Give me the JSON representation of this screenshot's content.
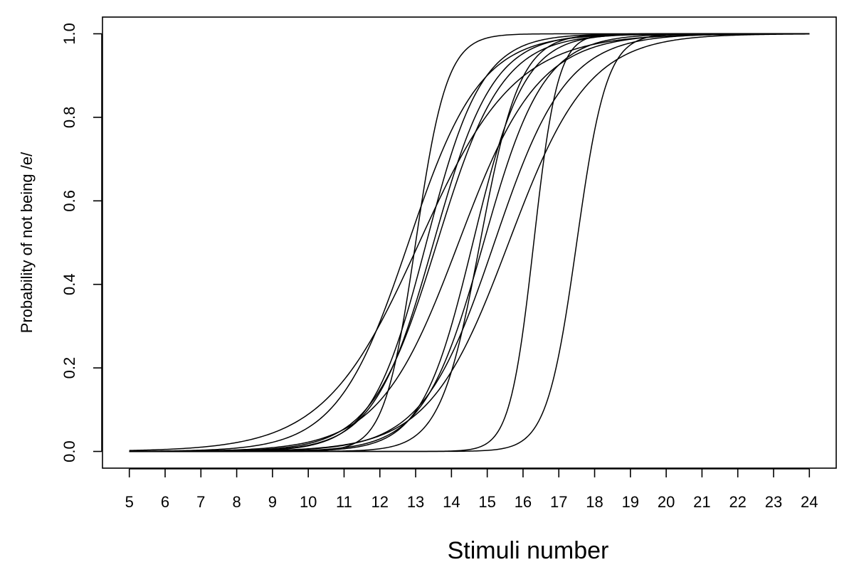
{
  "chart_data": {
    "type": "line",
    "title": "",
    "xlabel": "Stimuli number",
    "ylabel": "Probability of not being /e/",
    "xlim": [
      4.25,
      24.75
    ],
    "ylim": [
      -0.04,
      1.04
    ],
    "x_ticks": [
      5,
      6,
      7,
      8,
      9,
      10,
      11,
      12,
      13,
      14,
      15,
      16,
      17,
      18,
      19,
      20,
      21,
      22,
      23,
      24
    ],
    "x_tick_labels": [
      "5",
      "6",
      "7",
      "8",
      "9",
      "10",
      "11",
      "12",
      "13",
      "14",
      "15",
      "16",
      "17",
      "18",
      "19",
      "20",
      "21",
      "22",
      "23",
      "24"
    ],
    "y_ticks": [
      0.0,
      0.2,
      0.4,
      0.6,
      0.8,
      1.0
    ],
    "y_tick_labels": [
      "0.0",
      "0.2",
      "0.4",
      "0.6",
      "0.8",
      "1.0"
    ],
    "grid": false,
    "legend": "none",
    "line_color": "#000000",
    "curve_model": "logistic",
    "series": [
      {
        "midpoint": 13.0,
        "slope": 2.3
      },
      {
        "midpoint": 13.3,
        "slope": 1.3
      },
      {
        "midpoint": 13.6,
        "slope": 1.1
      },
      {
        "midpoint": 13.5,
        "slope": 1.2
      },
      {
        "midpoint": 12.8,
        "slope": 1.0
      },
      {
        "midpoint": 13.1,
        "slope": 0.75
      },
      {
        "midpoint": 14.2,
        "slope": 0.9
      },
      {
        "midpoint": 14.6,
        "slope": 1.4
      },
      {
        "midpoint": 14.8,
        "slope": 1.8
      },
      {
        "midpoint": 14.9,
        "slope": 1.2
      },
      {
        "midpoint": 15.2,
        "slope": 1.0
      },
      {
        "midpoint": 15.6,
        "slope": 0.9
      },
      {
        "midpoint": 16.3,
        "slope": 3.0
      },
      {
        "midpoint": 17.5,
        "slope": 2.4
      }
    ]
  }
}
